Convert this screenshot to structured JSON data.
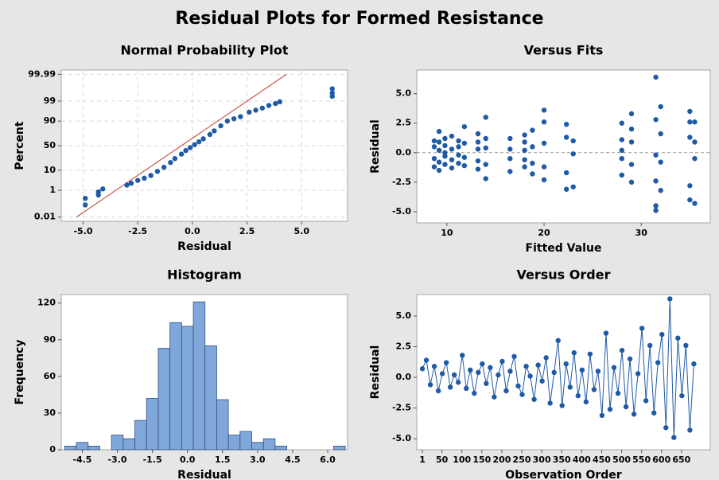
{
  "title": "Residual Plots for Formed Resistance",
  "chart_data": [
    {
      "type": "scatter",
      "title": "Normal Probability Plot",
      "x_label": "Residual",
      "y_label": "Percent",
      "yscale": "probability",
      "grid": true,
      "color": "#1f5aa6",
      "line_color": "#c0392b",
      "x": [
        -4.9,
        -4.9,
        -4.3,
        -4.3,
        -4.1,
        -3.0,
        -2.8,
        -2.5,
        -2.2,
        -1.9,
        -1.6,
        -1.3,
        -1.0,
        -0.8,
        -0.5,
        -0.3,
        -0.1,
        0.1,
        0.3,
        0.5,
        0.8,
        1.0,
        1.3,
        1.6,
        1.9,
        2.2,
        2.6,
        2.9,
        3.2,
        3.5,
        3.8,
        4.0,
        6.4,
        6.4,
        6.4
      ],
      "y": [
        0.1,
        0.3,
        0.5,
        0.8,
        1.2,
        2,
        2.5,
        3.5,
        4.5,
        6,
        9,
        13,
        19,
        25,
        33,
        40,
        46,
        52,
        58,
        64,
        72,
        78,
        85,
        90,
        92,
        93.5,
        96,
        96.8,
        97.5,
        98.2,
        98.6,
        98.9,
        99.5,
        99.7,
        99.85
      ],
      "fit_line": {
        "x": [
          -5.3,
          4.3
        ],
        "y": [
          0.01,
          99.99
        ]
      },
      "xlim": [
        -6.0,
        7.1
      ],
      "xticks": [
        {
          "value": -5.0,
          "label": "-5.0"
        },
        -2.5,
        {
          "value": 0.0,
          "label": "0.0"
        },
        2.5,
        {
          "value": 5.0,
          "label": "5.0"
        }
      ],
      "ylim": [
        0.004,
        99.996
      ],
      "yticks": [
        0.01,
        1,
        10,
        50,
        90,
        99,
        99.99
      ]
    },
    {
      "type": "scatter",
      "title": "Versus Fits",
      "x_label": "Fitted Value",
      "y_label": "Residual",
      "color": "#1f5aa6",
      "reference_y": 0,
      "x": [
        8.7,
        8.7,
        8.7,
        8.7,
        9.2,
        9.2,
        9.2,
        9.2,
        9.2,
        9.8,
        9.8,
        9.8,
        9.8,
        9.8,
        10.5,
        10.5,
        10.5,
        10.5,
        11.2,
        11.2,
        11.2,
        11.2,
        11.8,
        11.8,
        11.8,
        11.8,
        13.2,
        13.2,
        13.2,
        13.2,
        13.2,
        14.0,
        14.0,
        14.0,
        14.0,
        14.0,
        16.5,
        16.5,
        16.5,
        16.5,
        18.0,
        18.0,
        18.0,
        18.0,
        18.0,
        18.8,
        18.8,
        18.8,
        18.8,
        20.0,
        20.0,
        20.0,
        20.0,
        20.0,
        22.3,
        22.3,
        22.3,
        22.3,
        23.0,
        23.0,
        23.0,
        28.0,
        28.0,
        28.0,
        28.0,
        28.0,
        29.0,
        29.0,
        29.0,
        29.0,
        29.0,
        31.5,
        31.5,
        31.5,
        31.5,
        31.5,
        31.5,
        32.0,
        32.0,
        32.0,
        32.0,
        35.0,
        35.0,
        35.0,
        35.0,
        35.0,
        35.5,
        35.5,
        35.5,
        35.5
      ],
      "y": [
        0.5,
        -0.5,
        1.0,
        -1.2,
        1.8,
        0.2,
        -0.8,
        0.9,
        -1.5,
        1.2,
        -0.3,
        0.6,
        -1.0,
        0.0,
        1.4,
        -0.6,
        0.3,
        -1.3,
        1.0,
        -0.9,
        0.5,
        -0.2,
        2.2,
        0.8,
        -1.1,
        -0.4,
        0.9,
        -1.4,
        0.3,
        -0.7,
        1.6,
        3.0,
        1.2,
        -1.0,
        -2.2,
        0.4,
        1.2,
        0.3,
        -1.6,
        -0.5,
        1.5,
        0.2,
        -1.2,
        -0.6,
        0.9,
        1.9,
        -1.8,
        0.5,
        -0.9,
        3.6,
        2.6,
        0.8,
        -1.2,
        -2.3,
        2.4,
        1.3,
        -1.7,
        -3.1,
        1.0,
        -0.1,
        -2.9,
        2.5,
        1.1,
        -0.5,
        -1.9,
        0.2,
        3.3,
        2.0,
        0.9,
        -1.0,
        -2.5,
        6.4,
        2.8,
        -0.2,
        -2.4,
        -4.5,
        -4.9,
        3.9,
        1.6,
        -0.8,
        -3.2,
        3.5,
        2.6,
        1.3,
        -2.8,
        -4.0,
        2.6,
        0.9,
        -0.5,
        -4.3
      ],
      "xlim": [
        6.9,
        37.1
      ],
      "xticks": [
        10,
        20,
        30
      ],
      "ylim": [
        -5.95,
        7.0
      ],
      "yticks": [
        {
          "value": -5.0,
          "label": "-5.0"
        },
        -2.5,
        {
          "value": 0.0,
          "label": "0.0"
        },
        2.5,
        {
          "value": 5.0,
          "label": "5.0"
        }
      ]
    },
    {
      "type": "histogram",
      "title": "Histogram",
      "x_label": "Residual",
      "y_label": "Frequency",
      "color": "#7fa7d9",
      "edge_color": "#34507a",
      "bins": [
        -5.25,
        -4.75,
        -4.25,
        -3.75,
        -3.25,
        -2.75,
        -2.25,
        -1.75,
        -1.25,
        -0.75,
        -0.25,
        0.25,
        0.75,
        1.25,
        1.75,
        2.25,
        2.75,
        3.25,
        3.75,
        4.25,
        4.75,
        5.25,
        5.75,
        6.25,
        6.75
      ],
      "counts": [
        3,
        6,
        3,
        0,
        12,
        9,
        24,
        42,
        83,
        104,
        101,
        121,
        85,
        41,
        12,
        15,
        6,
        9,
        3,
        0,
        0,
        0,
        0,
        3
      ],
      "xlim": [
        -5.4,
        6.85
      ],
      "xticks": [
        -4.5,
        {
          "value": -3.0,
          "label": "-3.0"
        },
        -1.5,
        {
          "value": 0.0,
          "label": "0.0"
        },
        1.5,
        {
          "value": 3.0,
          "label": "3.0"
        },
        4.5,
        {
          "value": 6.0,
          "label": "6.0"
        }
      ],
      "ylim": [
        0,
        127
      ],
      "yticks": [
        0,
        30,
        60,
        90,
        120
      ]
    },
    {
      "type": "line",
      "title": "Versus Order",
      "x_label": "Observation Order",
      "y_label": "Residual",
      "color": "#1f5aa6",
      "markers": true,
      "x": [
        1,
        11,
        21,
        31,
        41,
        51,
        61,
        71,
        81,
        91,
        101,
        111,
        121,
        131,
        141,
        151,
        161,
        171,
        181,
        191,
        201,
        211,
        221,
        231,
        241,
        251,
        261,
        271,
        281,
        291,
        301,
        311,
        321,
        331,
        341,
        351,
        361,
        371,
        381,
        391,
        401,
        411,
        421,
        431,
        441,
        451,
        461,
        471,
        481,
        491,
        501,
        511,
        521,
        531,
        541,
        551,
        561,
        571,
        581,
        591,
        601,
        611,
        621,
        631,
        641,
        651,
        661,
        671,
        681
      ],
      "y": [
        0.7,
        1.4,
        -0.6,
        0.9,
        -1.1,
        0.3,
        1.2,
        -0.8,
        0.2,
        -0.4,
        1.8,
        -0.9,
        0.6,
        -1.3,
        0.4,
        1.1,
        -0.5,
        0.8,
        -1.6,
        0.2,
        1.3,
        -1.1,
        0.5,
        1.7,
        -0.7,
        -1.4,
        0.9,
        0.1,
        -1.8,
        1.0,
        -0.3,
        1.6,
        -2.1,
        0.4,
        3.0,
        -2.3,
        1.1,
        -0.8,
        2.0,
        -1.5,
        0.6,
        -2.0,
        1.9,
        -1.0,
        0.5,
        -3.1,
        3.6,
        -2.6,
        0.8,
        -1.3,
        2.2,
        -2.4,
        1.5,
        -3.0,
        0.3,
        4.0,
        -1.9,
        2.6,
        -2.9,
        1.2,
        3.5,
        -4.1,
        6.4,
        -4.9,
        3.2,
        -1.5,
        2.6,
        -4.3,
        1.1
      ],
      "xlim": [
        -13,
        722
      ],
      "xticks": [
        1,
        50,
        100,
        150,
        200,
        250,
        300,
        350,
        400,
        450,
        500,
        550,
        600,
        650
      ],
      "ylim": [
        -5.9,
        6.75
      ],
      "yticks": [
        {
          "value": -5.0,
          "label": "-5.0"
        },
        -2.5,
        {
          "value": 0.0,
          "label": "0.0"
        },
        2.5,
        {
          "value": 5.0,
          "label": "5.0"
        }
      ]
    }
  ]
}
